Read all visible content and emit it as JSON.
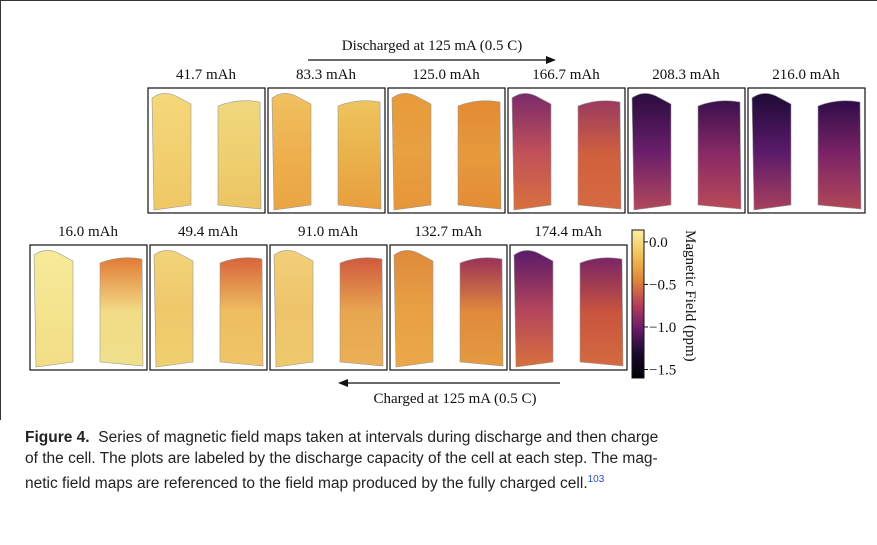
{
  "figure": {
    "discharge_label": "Discharged at 125 mA (0.5 C)",
    "charge_label": "Charged at 125 mA (0.5 C)",
    "top_row": [
      "41.7 mAh",
      "83.3 mAh",
      "125.0 mAh",
      "166.7 mAh",
      "208.3 mAh",
      "216.0 mAh"
    ],
    "bottom_row": [
      "16.0 mAh",
      "49.4 mAh",
      "91.0 mAh",
      "132.7 mAh",
      "174.4 mAh"
    ],
    "colorbar": {
      "label": "Magnetic Field (ppm)",
      "lim": [
        -1.6,
        0.14
      ],
      "ticks": [
        {
          "value": 0,
          "label": "0.0"
        },
        {
          "value": -0.5,
          "label": "−0.5"
        },
        {
          "value": -1,
          "label": "−1.0"
        },
        {
          "value": -1.5,
          "label": "−1.5"
        }
      ]
    }
  },
  "caption": {
    "label": "Figure 4.",
    "lines": [
      "Series of magnetic field maps taken at intervals during discharge and then charge",
      "of the cell. The plots are labeled by the discharge capacity of the cell at each step. The mag-",
      "netic field maps are referenced to the field map produced by the fully charged cell."
    ],
    "ref": "103"
  }
}
